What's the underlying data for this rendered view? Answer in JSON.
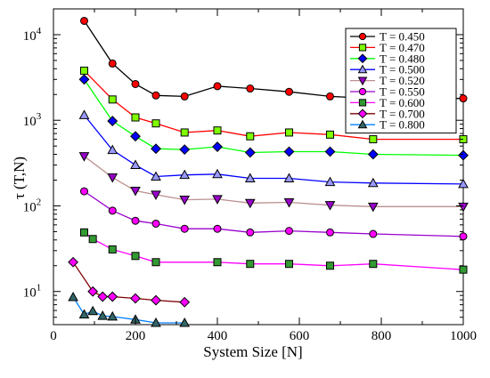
{
  "chart_data": {
    "type": "line",
    "title": "",
    "xlabel": "System Size [N]",
    "ylabel": "τ (T,N)",
    "xlim": [
      0,
      1000
    ],
    "ylim": [
      4.1,
      20000
    ],
    "yscale": "log",
    "xticks": [
      "0",
      "200",
      "400",
      "600",
      "800",
      "1000"
    ],
    "yticks": [
      {
        "base": "10",
        "exp": "1",
        "value": 10
      },
      {
        "base": "10",
        "exp": "2",
        "value": 100
      },
      {
        "base": "10",
        "exp": "3",
        "value": 1000
      },
      {
        "base": "10",
        "exp": "4",
        "value": 10000
      }
    ],
    "grid": false,
    "legend_position": "top-right",
    "series": [
      {
        "name": "T = 0.450",
        "marker": "circle",
        "color": "#ff0000",
        "line_color": "#000000",
        "x": [
          75,
          144,
          200,
          250,
          320,
          400,
          480,
          575,
          675,
          780,
          1000
        ],
        "y": [
          14500,
          4600,
          2650,
          1950,
          1900,
          2500,
          2350,
          2150,
          1900,
          1800,
          1800
        ]
      },
      {
        "name": "T = 0.470",
        "marker": "square",
        "color": "#7fff00",
        "line_color": "#ff0000",
        "x": [
          75,
          144,
          200,
          250,
          320,
          400,
          480,
          575,
          675,
          780,
          1000
        ],
        "y": [
          3800,
          1750,
          1080,
          920,
          720,
          760,
          650,
          720,
          680,
          600,
          600
        ]
      },
      {
        "name": "T = 0.480",
        "marker": "diamond",
        "color": "#0000ff",
        "line_color": "#00ff00",
        "x": [
          75,
          144,
          200,
          250,
          320,
          400,
          480,
          575,
          675,
          780,
          1000
        ],
        "y": [
          3000,
          980,
          650,
          465,
          455,
          490,
          420,
          430,
          430,
          400,
          390
        ]
      },
      {
        "name": "T = 0.500",
        "marker": "triangle-up",
        "color": "#9999ff",
        "line_color": "#0000ff",
        "x": [
          75,
          144,
          200,
          250,
          320,
          400,
          480,
          575,
          675,
          780,
          1000
        ],
        "y": [
          1150,
          450,
          300,
          220,
          230,
          235,
          210,
          210,
          190,
          185,
          180
        ]
      },
      {
        "name": "T = 0.520",
        "marker": "triangle-down",
        "color": "#9900cc",
        "line_color": "#bc8f8f",
        "x": [
          75,
          144,
          200,
          250,
          320,
          400,
          480,
          575,
          675,
          780,
          1000
        ],
        "y": [
          380,
          215,
          150,
          135,
          118,
          120,
          108,
          110,
          102,
          98,
          98
        ]
      },
      {
        "name": "T = 0.550",
        "marker": "circle",
        "color": "#ff00ff",
        "line_color": "#9900cc",
        "x": [
          75,
          144,
          200,
          250,
          320,
          400,
          480,
          575,
          675,
          780,
          1000
        ],
        "y": [
          148,
          88,
          67,
          62,
          54,
          54,
          49,
          51,
          49,
          47,
          44
        ]
      },
      {
        "name": "T = 0.600",
        "marker": "square",
        "color": "#339933",
        "line_color": "#ff00ff",
        "x": [
          75,
          96,
          144,
          200,
          250,
          400,
          480,
          575,
          675,
          780,
          1000
        ],
        "y": [
          49,
          41,
          31,
          26,
          22,
          22,
          21,
          21,
          20,
          21,
          18
        ]
      },
      {
        "name": "T = 0.700",
        "marker": "diamond",
        "color": "#ff00ff",
        "line_color": "#800000",
        "x": [
          48,
          96,
          120,
          144,
          200,
          250,
          320
        ],
        "y": [
          22,
          10,
          8.7,
          8.7,
          8.3,
          7.9,
          7.5
        ]
      },
      {
        "name": "T = 0.800",
        "marker": "triangle-up",
        "color": "#336666",
        "line_color": "#0080ff",
        "x": [
          48,
          75,
          96,
          120,
          144,
          200,
          250,
          320
        ],
        "y": [
          8.6,
          5.4,
          5.9,
          5.2,
          5.1,
          4.7,
          4.3,
          4.3
        ]
      }
    ]
  }
}
